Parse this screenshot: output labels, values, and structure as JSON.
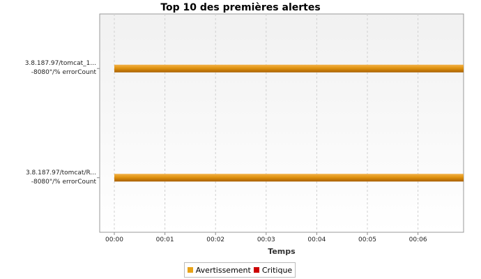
{
  "chart_data": {
    "type": "bar",
    "orientation": "horizontal",
    "title": "Top 10 des premières alertes",
    "xlabel": "Temps",
    "x_tick_labels": [
      "00:00",
      "00:01",
      "00:02",
      "00:03",
      "00:04",
      "00:05",
      "00:06"
    ],
    "xlim": [
      0,
      6.9
    ],
    "grid": true,
    "legend_position": "bottom",
    "categories": [
      {
        "line1": "3.8.187.97/tomcat_1...",
        "line2": "-8080\"/% errorCount"
      },
      {
        "line1": "3.8.187.97/tomcat/R...",
        "line2": "-8080\"/% errorCount"
      }
    ],
    "series": [
      {
        "name": "Avertissement",
        "color": "#e8a317",
        "intervals": [
          {
            "start": 0,
            "end": 6.9
          },
          {
            "start": 0,
            "end": 6.9
          }
        ]
      },
      {
        "name": "Critique",
        "color": "#cc0000",
        "intervals": []
      }
    ]
  }
}
